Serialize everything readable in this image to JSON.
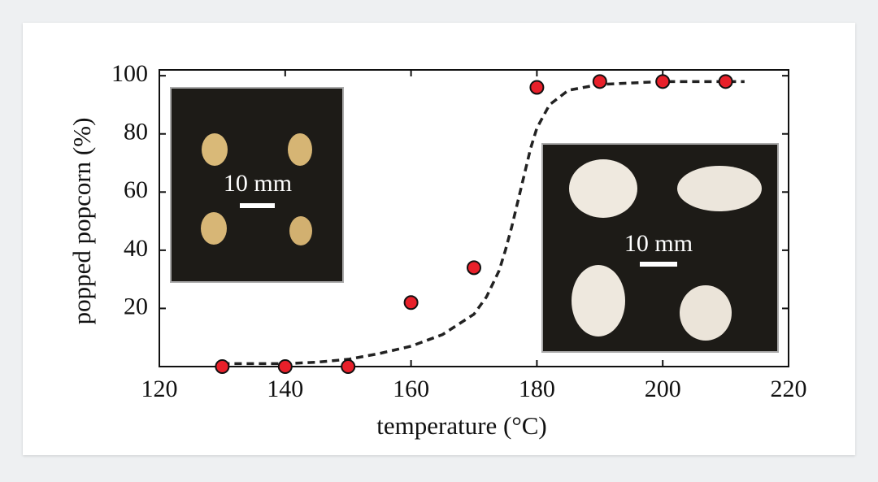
{
  "chart_data": {
    "type": "scatter",
    "x_label": "temperature (°C)",
    "y_label": "popped popcorn (%)",
    "x": [
      130,
      140,
      150,
      160,
      170,
      180,
      190,
      200,
      210
    ],
    "values": [
      0,
      0,
      0,
      22,
      34,
      96,
      98,
      98,
      98
    ],
    "color": "#e8202a",
    "fit_x": [
      130,
      140,
      145,
      150,
      155,
      160,
      165,
      170,
      172,
      174,
      175,
      176,
      177,
      178,
      179,
      180,
      182,
      185,
      190,
      200,
      213
    ],
    "fit_values": [
      1,
      1,
      1.5,
      2.5,
      4.5,
      7,
      11,
      18,
      24,
      33,
      40,
      48,
      57,
      66,
      75,
      82,
      90,
      95,
      97,
      98,
      98
    ],
    "fit_color": "#222222",
    "xlim": [
      120,
      220
    ],
    "xticks": [
      120,
      140,
      160,
      180,
      200,
      220
    ],
    "ylim": [
      0,
      102
    ],
    "yticks": [
      20,
      40,
      60,
      80,
      100
    ],
    "grid": false,
    "annotations": [
      "10 mm",
      "10 mm"
    ]
  }
}
